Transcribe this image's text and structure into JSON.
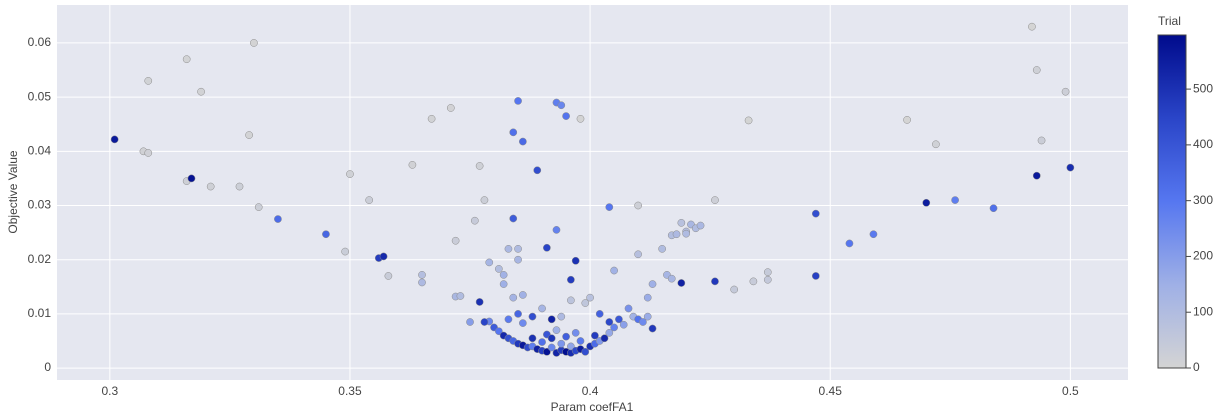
{
  "chart_data": {
    "type": "scatter",
    "x_label": "Param coefFA1",
    "y_label": "Objective Value",
    "colorbar_title": "Trial",
    "xlim": [
      0.289,
      0.512
    ],
    "ylim": [
      -0.0022,
      0.067
    ],
    "xticks": [
      0.3,
      0.35,
      0.4,
      0.45,
      0.5
    ],
    "yticks": [
      0,
      0.01,
      0.02,
      0.03,
      0.04,
      0.05,
      0.06
    ],
    "clim": [
      0,
      597
    ],
    "cticks": [
      0,
      100,
      200,
      300,
      400,
      500
    ],
    "colorscale": [
      [
        0,
        "#d4d4d4"
      ],
      [
        0.25,
        "#9fb0e6"
      ],
      [
        0.5,
        "#5677f0"
      ],
      [
        0.75,
        "#2a45c8"
      ],
      [
        1,
        "#000b8c"
      ]
    ],
    "grid": true,
    "x": [
      0.316,
      0.308,
      0.319,
      0.33,
      0.307,
      0.308,
      0.316,
      0.321,
      0.327,
      0.329,
      0.331,
      0.349,
      0.35,
      0.354,
      0.358,
      0.363,
      0.367,
      0.371,
      0.372,
      0.376,
      0.377,
      0.378,
      0.398,
      0.41,
      0.426,
      0.43,
      0.433,
      0.434,
      0.437,
      0.437,
      0.466,
      0.472,
      0.492,
      0.493,
      0.499,
      0.494,
      0.365,
      0.365,
      0.372,
      0.373,
      0.379,
      0.381,
      0.382,
      0.383,
      0.385,
      0.385,
      0.382,
      0.384,
      0.386,
      0.41,
      0.415,
      0.417,
      0.418,
      0.419,
      0.42,
      0.421,
      0.422,
      0.423,
      0.42,
      0.416,
      0.417,
      0.405,
      0.413,
      0.412,
      0.385,
      0.384,
      0.386,
      0.393,
      0.394,
      0.395,
      0.393,
      0.404,
      0.384,
      0.389,
      0.459,
      0.454,
      0.476,
      0.484,
      0.335,
      0.345,
      0.379,
      0.386,
      0.301,
      0.317,
      0.356,
      0.357,
      0.377,
      0.391,
      0.397,
      0.396,
      0.419,
      0.426,
      0.447,
      0.447,
      0.47,
      0.493,
      0.5,
      0.375,
      0.378,
      0.38,
      0.381,
      0.382,
      0.383,
      0.384,
      0.385,
      0.386,
      0.387,
      0.388,
      0.388,
      0.389,
      0.39,
      0.39,
      0.391,
      0.391,
      0.392,
      0.392,
      0.393,
      0.393,
      0.394,
      0.394,
      0.395,
      0.395,
      0.396,
      0.396,
      0.397,
      0.397,
      0.398,
      0.398,
      0.399,
      0.399,
      0.4,
      0.4,
      0.401,
      0.401,
      0.402,
      0.402,
      0.403,
      0.404,
      0.404,
      0.405,
      0.406,
      0.407,
      0.408,
      0.409,
      0.41,
      0.411,
      0.412,
      0.413,
      0.39,
      0.388,
      0.385,
      0.383,
      0.392,
      0.396,
      0.394
    ],
    "series": [
      {
        "values": [
          0.057,
          0.053,
          0.051,
          0.06,
          0.04,
          0.0397,
          0.0345,
          0.0335,
          0.0335,
          0.043,
          0.0297,
          0.0215,
          0.0358,
          0.031,
          0.017,
          0.0375,
          0.046,
          0.048,
          0.0235,
          0.0272,
          0.0373,
          0.031,
          0.046,
          0.03,
          0.031,
          0.0145,
          0.0457,
          0.016,
          0.0177,
          0.0163,
          0.0458,
          0.0413,
          0.063,
          0.055,
          0.051,
          0.042,
          0.0172,
          0.0158,
          0.0132,
          0.0133,
          0.0195,
          0.0183,
          0.0172,
          0.022,
          0.022,
          0.02,
          0.0155,
          0.013,
          0.0135,
          0.021,
          0.022,
          0.0245,
          0.0247,
          0.0268,
          0.0252,
          0.0265,
          0.0258,
          0.0263,
          0.0248,
          0.0172,
          0.0165,
          0.018,
          0.0155,
          0.013,
          0.0493,
          0.0435,
          0.0418,
          0.049,
          0.0485,
          0.0465,
          0.0255,
          0.0297,
          0.0276,
          0.0365,
          0.0247,
          0.023,
          0.031,
          0.0295,
          0.0275,
          0.0247,
          0.0086,
          0.0083,
          0.0422,
          0.035,
          0.0203,
          0.0206,
          0.0122,
          0.0222,
          0.0198,
          0.0163,
          0.0157,
          0.016,
          0.0285,
          0.017,
          0.0305,
          0.0355,
          0.037,
          0.0085,
          0.0085,
          0.0075,
          0.0068,
          0.006,
          0.0055,
          0.005,
          0.0045,
          0.0042,
          0.0038,
          0.004,
          0.0055,
          0.0035,
          0.0032,
          0.0048,
          0.003,
          0.0062,
          0.0038,
          0.0055,
          0.0028,
          0.007,
          0.0033,
          0.0045,
          0.003,
          0.0058,
          0.0028,
          0.004,
          0.0032,
          0.0065,
          0.0035,
          0.005,
          0.003,
          0.012,
          0.004,
          0.013,
          0.0045,
          0.006,
          0.005,
          0.01,
          0.0055,
          0.0065,
          0.0085,
          0.0075,
          0.009,
          0.008,
          0.011,
          0.0095,
          0.009,
          0.0085,
          0.0095,
          0.0073,
          0.011,
          0.0095,
          0.01,
          0.009,
          0.009,
          0.0125,
          0.0095
        ],
        "trial": [
          5,
          10,
          8,
          3,
          12,
          15,
          20,
          18,
          22,
          6,
          25,
          30,
          14,
          28,
          35,
          11,
          9,
          7,
          32,
          40,
          16,
          26,
          4,
          19,
          21,
          45,
          2,
          38,
          42,
          48,
          1,
          13,
          0,
          17,
          23,
          29,
          90,
          110,
          120,
          100,
          130,
          95,
          140,
          115,
          105,
          125,
          150,
          135,
          145,
          85,
          100,
          95,
          110,
          80,
          90,
          120,
          100,
          115,
          105,
          130,
          125,
          140,
          150,
          160,
          300,
          320,
          340,
          280,
          260,
          310,
          270,
          300,
          380,
          420,
          290,
          300,
          280,
          320,
          330,
          350,
          260,
          250,
          560,
          580,
          470,
          520,
          500,
          450,
          500,
          470,
          540,
          480,
          420,
          460,
          550,
          560,
          510,
          200,
          450,
          380,
          300,
          520,
          410,
          350,
          480,
          560,
          430,
          280,
          500,
          540,
          460,
          320,
          580,
          400,
          260,
          490,
          530,
          150,
          470,
          220,
          590,
          370,
          510,
          180,
          440,
          240,
          550,
          290,
          420,
          60,
          500,
          80,
          330,
          470,
          210,
          360,
          520,
          170,
          440,
          270,
          390,
          190,
          230,
          140,
          310,
          250,
          160,
          480,
          130,
          420,
          350,
          290,
          540,
          70,
          110
        ]
      }
    ]
  }
}
